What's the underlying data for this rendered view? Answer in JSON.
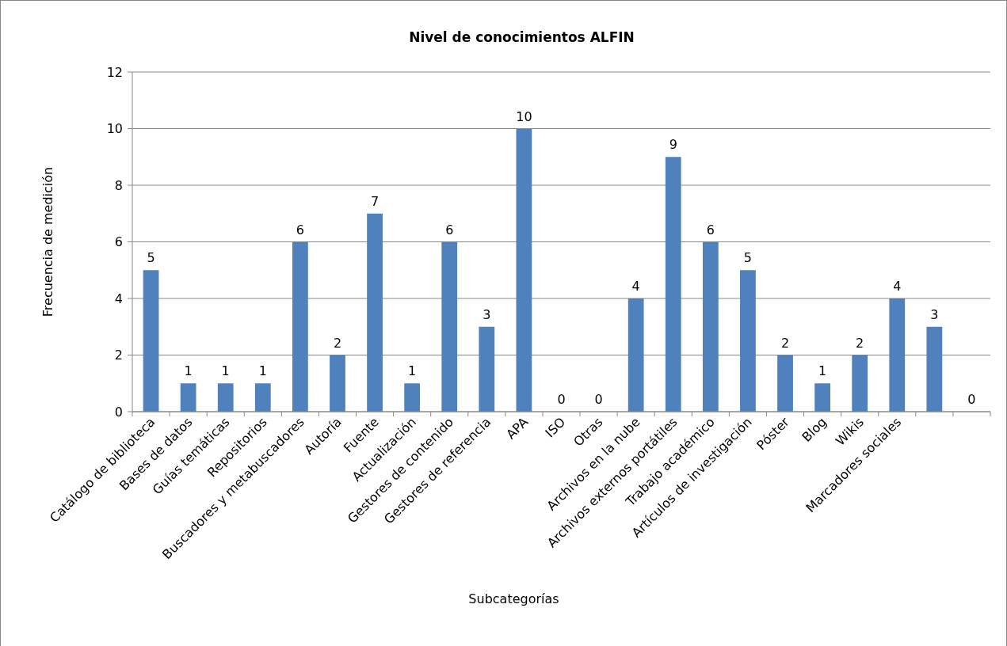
{
  "chart_data": {
    "type": "bar",
    "title": "Nivel de conocimientos ALFIN",
    "xlabel": "Subcategorías",
    "ylabel": "Frecuencia de medición",
    "categories": [
      "Catálogo de biblioteca",
      "Bases de datos",
      "Guías temáticas",
      "Repositorios",
      "Buscadores y metabuscadores",
      "Autoría",
      "Fuente",
      "Actualización",
      "Gestores de contenido",
      "Gestores de referencia",
      "APA",
      "ISO",
      "Otras",
      "Archivos en la nube",
      "Archivos externos portátiles",
      "Trabajo académico",
      "Artículos de investigación",
      "Póster",
      "Blog",
      "Wikis",
      "Marcadores sociales",
      null,
      null
    ],
    "values": [
      5,
      1,
      1,
      1,
      6,
      2,
      7,
      1,
      6,
      3,
      10,
      0,
      0,
      4,
      9,
      6,
      5,
      2,
      1,
      2,
      4,
      3,
      0
    ],
    "color": "#4f81bd",
    "ylim": [
      0,
      12
    ],
    "yticks": [
      0,
      2,
      4,
      6,
      8,
      10,
      12
    ],
    "grid": "y",
    "data_labels": true
  }
}
